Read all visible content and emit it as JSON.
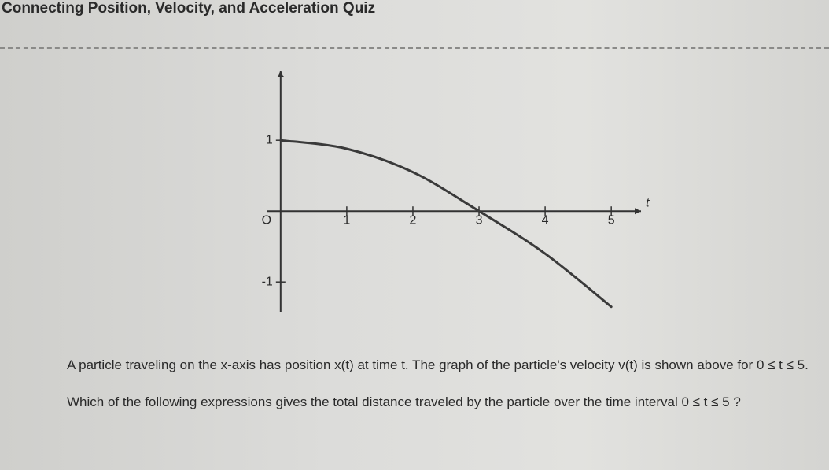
{
  "header": {
    "title": "Connecting Position, Velocity, and Acceleration Quiz"
  },
  "graph": {
    "type": "line",
    "x_label": "t",
    "x": [
      0,
      1,
      2,
      3,
      4,
      5
    ],
    "values": [
      1,
      0.88,
      0.55,
      0,
      -0.6,
      -1.35
    ],
    "color": "#3a3a3a",
    "xlim": [
      -0.2,
      5.45
    ],
    "ylim": [
      -1.42,
      1.98
    ],
    "xticks": [
      {
        "value": 0,
        "label": "O"
      },
      1,
      2,
      3,
      4,
      5
    ],
    "yticks": [
      1,
      -1
    ]
  },
  "question": {
    "text": "A particle traveling on the x-axis has position x(t) at time t. The graph of the particle's velocity v(t) is shown above for 0 ≤ t ≤ 5. Which of the following expressions gives the total distance traveled by the particle over the time interval 0 ≤ t ≤ 5 ?"
  }
}
